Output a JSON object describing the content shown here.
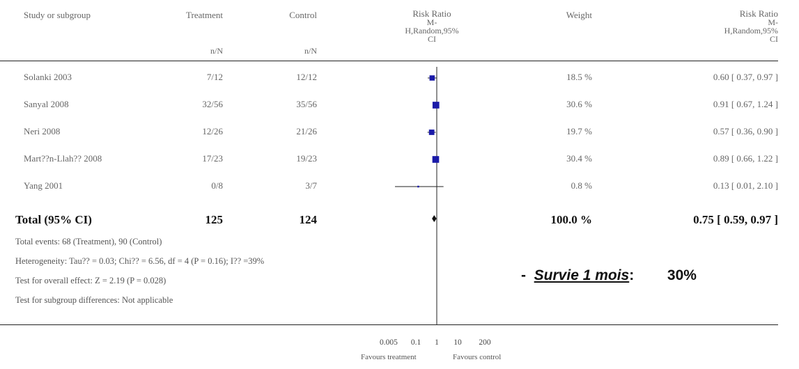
{
  "headers": {
    "study": "Study or subgroup",
    "treatment": "Treatment",
    "control": "Control",
    "rr_plot": [
      "Risk Ratio",
      "M-",
      "H,Random,95%",
      "CI"
    ],
    "weight": "Weight",
    "rr_text": [
      "Risk Ratio",
      "M-",
      "H,Random,95%",
      "CI"
    ],
    "nN_treatment": "n/N",
    "nN_control": "n/N"
  },
  "total": {
    "label": "Total (95% CI)",
    "treatment": "125",
    "control": "124",
    "weight": "100.0 %",
    "rr_text": "0.75 [ 0.59, 0.97 ]"
  },
  "notes": [
    "Total events: 68 (Treatment), 90 (Control)",
    "Heterogeneity: Tau?? = 0.03; Chi?? = 6.56, df = 4 (P = 0.16); I?? =39%",
    "Test for overall effect: Z = 2.19 (P = 0.028)",
    "Test for subgroup differences: Not applicable"
  ],
  "callout": {
    "dash": "-",
    "label": "Survie 1 mois",
    "colon": ":",
    "value": "30%"
  },
  "axis": {
    "favours_treatment": "Favours treatment",
    "favours_control": "Favours control"
  },
  "chart_data": {
    "type": "forest",
    "scale": "log",
    "xlim": [
      0.005,
      200
    ],
    "ticks": [
      {
        "value": 0.005,
        "label": "0.005"
      },
      {
        "value": 0.1,
        "label": "0.1"
      },
      {
        "value": 1,
        "label": "1"
      },
      {
        "value": 10,
        "label": "10"
      },
      {
        "value": 200,
        "label": "200"
      }
    ],
    "null_line": 1,
    "studies": [
      {
        "name": "Solanki 2003",
        "treatment": "7/12",
        "control": "12/12",
        "weight": "18.5 %",
        "weight_pct": 18.5,
        "rr": 0.6,
        "lo": 0.37,
        "hi": 0.97,
        "rr_text": "0.60 [ 0.37, 0.97 ]"
      },
      {
        "name": "Sanyal 2008",
        "treatment": "32/56",
        "control": "35/56",
        "weight": "30.6 %",
        "weight_pct": 30.6,
        "rr": 0.91,
        "lo": 0.67,
        "hi": 1.24,
        "rr_text": "0.91 [ 0.67, 1.24 ]"
      },
      {
        "name": "Neri 2008",
        "treatment": "12/26",
        "control": "21/26",
        "weight": "19.7 %",
        "weight_pct": 19.7,
        "rr": 0.57,
        "lo": 0.36,
        "hi": 0.9,
        "rr_text": "0.57 [ 0.36, 0.90 ]"
      },
      {
        "name": "Mart??n-Llah?? 2008",
        "treatment": "17/23",
        "control": "19/23",
        "weight": "30.4 %",
        "weight_pct": 30.4,
        "rr": 0.89,
        "lo": 0.66,
        "hi": 1.22,
        "rr_text": "0.89 [ 0.66, 1.22 ]"
      },
      {
        "name": "Yang 2001",
        "treatment": "0/8",
        "control": "3/7",
        "weight": "0.8 %",
        "weight_pct": 0.8,
        "rr": 0.13,
        "lo": 0.01,
        "hi": 2.1,
        "rr_text": "0.13 [ 0.01, 2.10 ]"
      }
    ],
    "pooled": {
      "rr": 0.75,
      "lo": 0.59,
      "hi": 0.97
    },
    "colors": {
      "box": "#1a1aa8",
      "line": "#222222",
      "diamond": "#111111"
    }
  }
}
